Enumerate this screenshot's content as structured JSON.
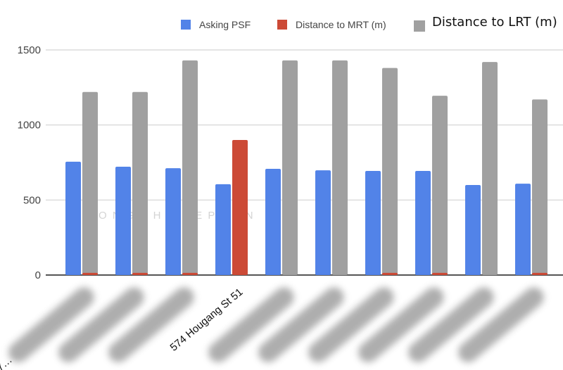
{
  "chart_data": {
    "type": "bar",
    "title": "",
    "xlabel": "",
    "ylabel": "",
    "ylim": [
      0,
      1500
    ],
    "yticks": [
      0,
      500,
      1000,
      1500
    ],
    "grid": true,
    "legend_position": "top",
    "categories": [
      "47…",
      "",
      "",
      "574 Hougang St 51",
      "",
      "",
      "",
      "",
      "",
      ""
    ],
    "series": [
      {
        "name": "Asking PSF",
        "color": "#5283e8",
        "values": [
          755,
          722,
          712,
          605,
          708,
          698,
          694,
          694,
          600,
          609
        ]
      },
      {
        "name": "Distance to MRT (m)",
        "color": "#cc4a36",
        "values": [
          5,
          5,
          5,
          900,
          0,
          0,
          5,
          5,
          0,
          5
        ]
      },
      {
        "name": "Distance to LRT (m)",
        "color": "#a0a0a0",
        "values": [
          1220,
          1220,
          1430,
          0,
          1430,
          1430,
          1380,
          1195,
          1420,
          1170
        ]
      }
    ],
    "watermark": "O N G C H W E E P U A N"
  }
}
